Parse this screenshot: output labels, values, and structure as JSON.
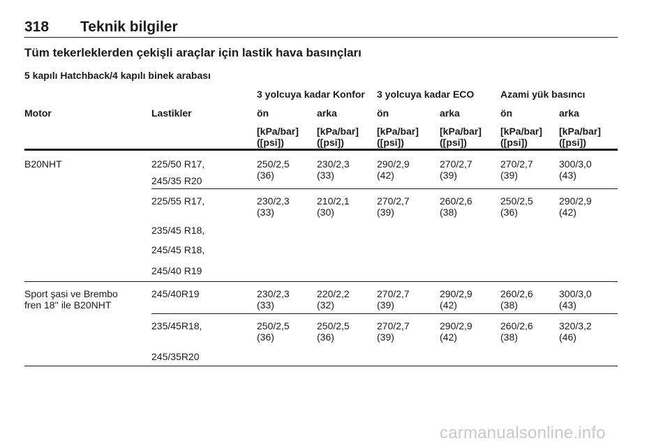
{
  "page": {
    "number": "318",
    "running_title": "Teknik bilgiler"
  },
  "section_title": "Tüm tekerleklerden çekişli araçlar için lastik hava basınçları",
  "subsection_title": "5 kapılı Hatchback/4 kapılı binek arabası",
  "table": {
    "group_headers": [
      "3 yolcuya kadar Konfor",
      "3 yolcuya kadar ECO",
      "Azami yük basıncı"
    ],
    "column_headers": [
      "Motor",
      "Lastikler",
      "ön",
      "arka",
      "ön",
      "arka",
      "ön",
      "arka"
    ],
    "unit_line1": "[kPa/bar]",
    "unit_line2": "([psi])",
    "rows": [
      {
        "motor": [
          "B20NHT"
        ],
        "tyres": [
          "225/50 R17,",
          "245/35 R20"
        ],
        "values": [
          [
            "250/2,5",
            "(36)"
          ],
          [
            "230/2,3",
            "(33)"
          ],
          [
            "290/2,9",
            "(42)"
          ],
          [
            "270/2,7",
            "(39)"
          ],
          [
            "270/2,7",
            "(39)"
          ],
          [
            "300/3,0",
            "(43)"
          ]
        ]
      },
      {
        "motor": [],
        "tyres": [
          "225/55 R17,",
          "235/45 R18,",
          "245/45 R18,",
          "245/40 R19"
        ],
        "values": [
          [
            "230/2,3",
            "(33)"
          ],
          [
            "210/2,1",
            "(30)"
          ],
          [
            "270/2,7",
            "(39)"
          ],
          [
            "260/2,6",
            "(38)"
          ],
          [
            "250/2,5",
            "(36)"
          ],
          [
            "290/2,9",
            "(42)"
          ]
        ]
      },
      {
        "motor": [
          "Sport şasi ve Brembo",
          "fren 18'' ile B20NHT"
        ],
        "tyres": [
          "245/40R19"
        ],
        "values": [
          [
            "230/2,3",
            "(33)"
          ],
          [
            "220/2,2",
            "(32)"
          ],
          [
            "270/2,7",
            "(39)"
          ],
          [
            "290/2,9",
            "(42)"
          ],
          [
            "260/2,6",
            "(38)"
          ],
          [
            "300/3,0",
            "(43)"
          ]
        ]
      },
      {
        "motor": [],
        "tyres": [
          "235/45R18,",
          "245/35R20"
        ],
        "values": [
          [
            "250/2,5",
            "(36)"
          ],
          [
            "250/2,5",
            "(36)"
          ],
          [
            "270/2,7",
            "(39)"
          ],
          [
            "290/2,9",
            "(42)"
          ],
          [
            "260/2,6",
            "(38)"
          ],
          [
            "320/3,2",
            "(46)"
          ]
        ]
      }
    ]
  },
  "watermark": "carmanualsonline.info"
}
